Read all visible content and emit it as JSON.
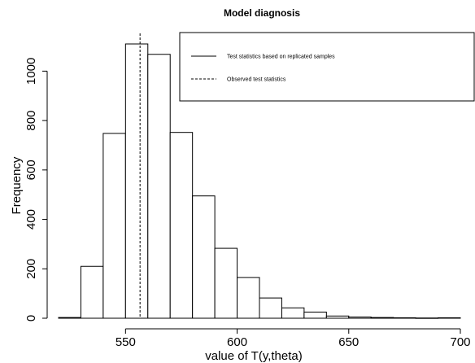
{
  "chart_data": {
    "type": "bar",
    "title": "Model diagnosis",
    "xlabel": "value of T(y,theta)",
    "ylabel": "Frequency",
    "xlim": [
      520,
      700
    ],
    "ylim": [
      0,
      1110
    ],
    "x_ticks": [
      550,
      600,
      650,
      700
    ],
    "y_ticks": [
      0,
      200,
      400,
      600,
      800,
      1000
    ],
    "bins": [
      {
        "x0": 520,
        "x1": 530,
        "value": 3
      },
      {
        "x0": 530,
        "x1": 540,
        "value": 210
      },
      {
        "x0": 540,
        "x1": 550,
        "value": 748
      },
      {
        "x0": 550,
        "x1": 560,
        "value": 1110
      },
      {
        "x0": 560,
        "x1": 570,
        "value": 1068
      },
      {
        "x0": 570,
        "x1": 580,
        "value": 752
      },
      {
        "x0": 580,
        "x1": 590,
        "value": 495
      },
      {
        "x0": 590,
        "x1": 600,
        "value": 283
      },
      {
        "x0": 600,
        "x1": 610,
        "value": 165
      },
      {
        "x0": 610,
        "x1": 620,
        "value": 82
      },
      {
        "x0": 620,
        "x1": 630,
        "value": 42
      },
      {
        "x0": 630,
        "x1": 640,
        "value": 25
      },
      {
        "x0": 640,
        "x1": 650,
        "value": 9
      },
      {
        "x0": 650,
        "x1": 660,
        "value": 5
      },
      {
        "x0": 660,
        "x1": 670,
        "value": 3
      },
      {
        "x0": 670,
        "x1": 680,
        "value": 2
      },
      {
        "x0": 680,
        "x1": 690,
        "value": 1
      },
      {
        "x0": 690,
        "x1": 700,
        "value": 2
      }
    ],
    "observed_value": 556.5,
    "legend": {
      "position": "top-right",
      "entries": [
        {
          "label": "Test statistics based on replicated samples",
          "line": "solid"
        },
        {
          "label": "Observed test statistics",
          "line": "dashed"
        }
      ]
    },
    "grid": false
  }
}
